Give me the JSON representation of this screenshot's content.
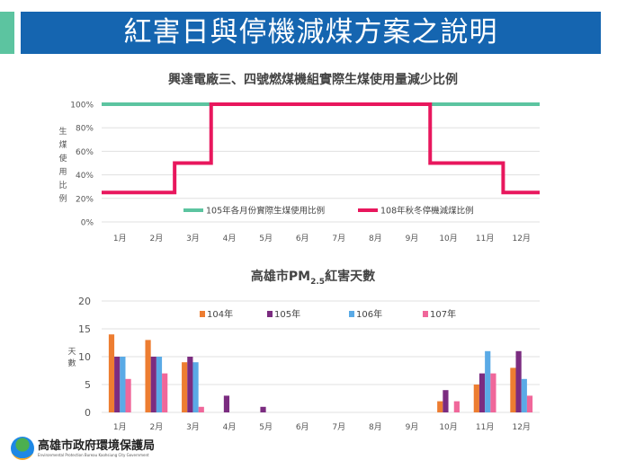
{
  "header": {
    "title": "紅害日與停機減煤方案之說明"
  },
  "colors": {
    "banner": "#1565b0",
    "accent": "#5cc4a0"
  },
  "chart_data": [
    {
      "type": "line",
      "title": "興達電廠三、四號燃煤機組實際生煤使用量減少比例",
      "ylabel": "生煤使用比例",
      "categories": [
        "1月",
        "2月",
        "3月",
        "4月",
        "5月",
        "6月",
        "7月",
        "8月",
        "9月",
        "10月",
        "11月",
        "12月"
      ],
      "yticks": [
        "0%",
        "20%",
        "40%",
        "60%",
        "80%",
        "100%"
      ],
      "ylim": [
        0,
        100
      ],
      "step": true,
      "grid": true,
      "legend_position": "bottom-inside",
      "series": [
        {
          "name": "105年各月份實際生煤使用比例",
          "color": "#5cc4a0",
          "values": [
            100,
            100,
            100,
            100,
            100,
            100,
            100,
            100,
            100,
            100,
            100,
            100
          ]
        },
        {
          "name": "108年秋冬停機減煤比例",
          "color": "#e8175d",
          "values": [
            25,
            25,
            50,
            100,
            100,
            100,
            100,
            100,
            100,
            50,
            50,
            25
          ]
        }
      ]
    },
    {
      "type": "bar",
      "title": "高雄市PM",
      "title_sub": "2.5",
      "title_tail": "紅害天數",
      "ylabel": "天數",
      "categories": [
        "1月",
        "2月",
        "3月",
        "4月",
        "5月",
        "6月",
        "7月",
        "8月",
        "9月",
        "10月",
        "11月",
        "12月"
      ],
      "yticks": [
        "0",
        "5",
        "10",
        "15",
        "20"
      ],
      "ylim": [
        0,
        20
      ],
      "grid": true,
      "legend_position": "top",
      "series": [
        {
          "name": "104年",
          "color": "#ed7d31",
          "values": [
            14,
            13,
            9,
            0,
            0,
            0,
            0,
            0,
            0,
            2,
            5,
            8
          ]
        },
        {
          "name": "105年",
          "color": "#7b2c80",
          "values": [
            10,
            10,
            10,
            3,
            1,
            0,
            0,
            0,
            0,
            4,
            7,
            11
          ]
        },
        {
          "name": "106年",
          "color": "#5aaae6",
          "values": [
            10,
            10,
            9,
            0,
            0,
            0,
            0,
            0,
            0,
            0,
            11,
            6
          ]
        },
        {
          "name": "107年",
          "color": "#f0679a",
          "values": [
            6,
            7,
            1,
            0,
            0,
            0,
            0,
            0,
            0,
            2,
            7,
            3
          ]
        }
      ]
    }
  ],
  "footer": {
    "agency_zh": "高雄市政府環境保護局",
    "agency_en": "Environmental Protection Bureau Kaohsiung City Government"
  }
}
